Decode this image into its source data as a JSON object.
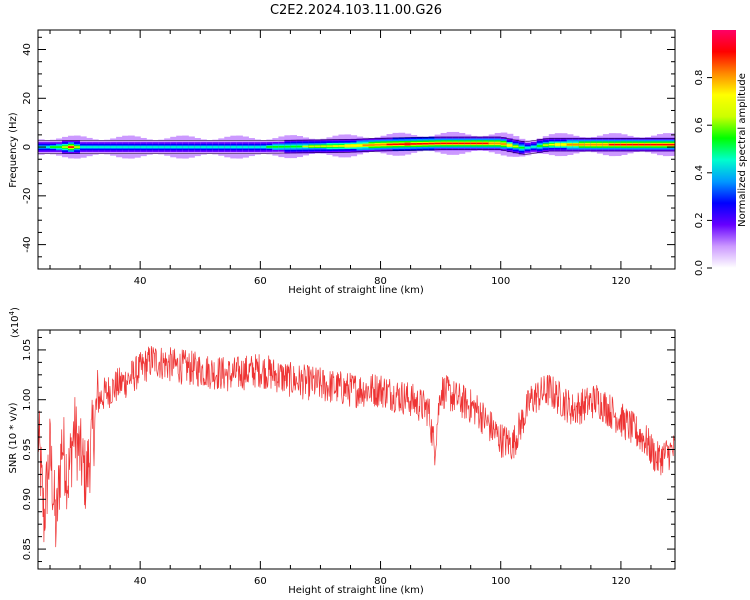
{
  "figure_title": "C2E2.2024.103.11.00.G26",
  "chart_data": [
    {
      "type": "heatmap",
      "title": "",
      "xlabel": "Height of straight line (km)",
      "ylabel": "Frequency (Hz)",
      "xlim": [
        23,
        129
      ],
      "ylim": [
        -50,
        48
      ],
      "xticks": [
        40,
        60,
        80,
        100,
        120
      ],
      "yticks": [
        -40,
        -20,
        0,
        20,
        40
      ],
      "colorbar": {
        "label": "Normalized spectral amplitude",
        "range": [
          0.0,
          1.0
        ],
        "ticks": [
          "0.0",
          "0.2",
          "0.4",
          "0.6",
          "0.8"
        ],
        "tick_values": [
          0.0,
          0.2,
          0.4,
          0.6,
          0.8
        ]
      },
      "colormap": [
        "#ffffff",
        "#cc99ff",
        "#6600ff",
        "#0000ff",
        "#0099ff",
        "#00ffcc",
        "#00ff00",
        "#ccff00",
        "#ffff00",
        "#ff8800",
        "#ff0000",
        "#ff0066"
      ],
      "band": {
        "center_frequency_hz": [
          [
            23,
            0
          ],
          [
            40,
            0
          ],
          [
            60,
            0
          ],
          [
            75,
            0.5
          ],
          [
            80,
            1
          ],
          [
            90,
            1.5
          ],
          [
            100,
            1.5
          ],
          [
            104,
            -0.5
          ],
          [
            108,
            1
          ],
          [
            120,
            1
          ],
          [
            129,
            1
          ]
        ],
        "peak_amplitude": [
          [
            23,
            0.45
          ],
          [
            27,
            0.55
          ],
          [
            28.5,
            0.9
          ],
          [
            30,
            0.5
          ],
          [
            40,
            0.42
          ],
          [
            50,
            0.45
          ],
          [
            60,
            0.48
          ],
          [
            70,
            0.65
          ],
          [
            78,
            0.8
          ],
          [
            84,
            0.95
          ],
          [
            90,
            0.9
          ],
          [
            96,
            0.88
          ],
          [
            100,
            0.85
          ],
          [
            103,
            0.6
          ],
          [
            105,
            0.45
          ],
          [
            108,
            0.7
          ],
          [
            115,
            0.85
          ],
          [
            125,
            0.9
          ],
          [
            129,
            0.9
          ]
        ]
      }
    },
    {
      "type": "line",
      "title": "",
      "xlabel": "Height of straight line (km)",
      "ylabel": "SNR (10 * v/v)",
      "y_multiplier_label": "(x10",
      "y_multiplier_exponent": "4",
      "xlim": [
        23,
        129
      ],
      "ylim": [
        0.83,
        1.07
      ],
      "xticks": [
        40,
        60,
        80,
        100,
        120
      ],
      "yticks": [
        0.85,
        0.9,
        0.95,
        1.0,
        1.05
      ],
      "ytick_labels": [
        "0.85",
        "0.90",
        "0.95",
        "1.00",
        "1.05"
      ],
      "series": [
        {
          "color": "#ee3333",
          "trend": [
            [
              23,
              0.97
            ],
            [
              24,
              0.88
            ],
            [
              25,
              0.95
            ],
            [
              26,
              0.87
            ],
            [
              27,
              0.96
            ],
            [
              28,
              0.92
            ],
            [
              29,
              0.97
            ],
            [
              31,
              0.92
            ],
            [
              33,
              1.0
            ],
            [
              35,
              1.01
            ],
            [
              38,
              1.02
            ],
            [
              40,
              1.03
            ],
            [
              42,
              1.04
            ],
            [
              45,
              1.035
            ],
            [
              50,
              1.03
            ],
            [
              55,
              1.025
            ],
            [
              60,
              1.03
            ],
            [
              65,
              1.02
            ],
            [
              70,
              1.015
            ],
            [
              75,
              1.01
            ],
            [
              80,
              1.01
            ],
            [
              85,
              1.0
            ],
            [
              88,
              0.99
            ],
            [
              89,
              0.95
            ],
            [
              90,
              1.01
            ],
            [
              93,
              1.0
            ],
            [
              96,
              0.99
            ],
            [
              100,
              0.96
            ],
            [
              102,
              0.955
            ],
            [
              105,
              1.0
            ],
            [
              108,
              1.01
            ],
            [
              112,
              0.99
            ],
            [
              116,
              1.0
            ],
            [
              120,
              0.98
            ],
            [
              124,
              0.96
            ],
            [
              126,
              0.94
            ],
            [
              129,
              0.95
            ]
          ],
          "noise_amplitude": 0.018
        }
      ]
    }
  ]
}
